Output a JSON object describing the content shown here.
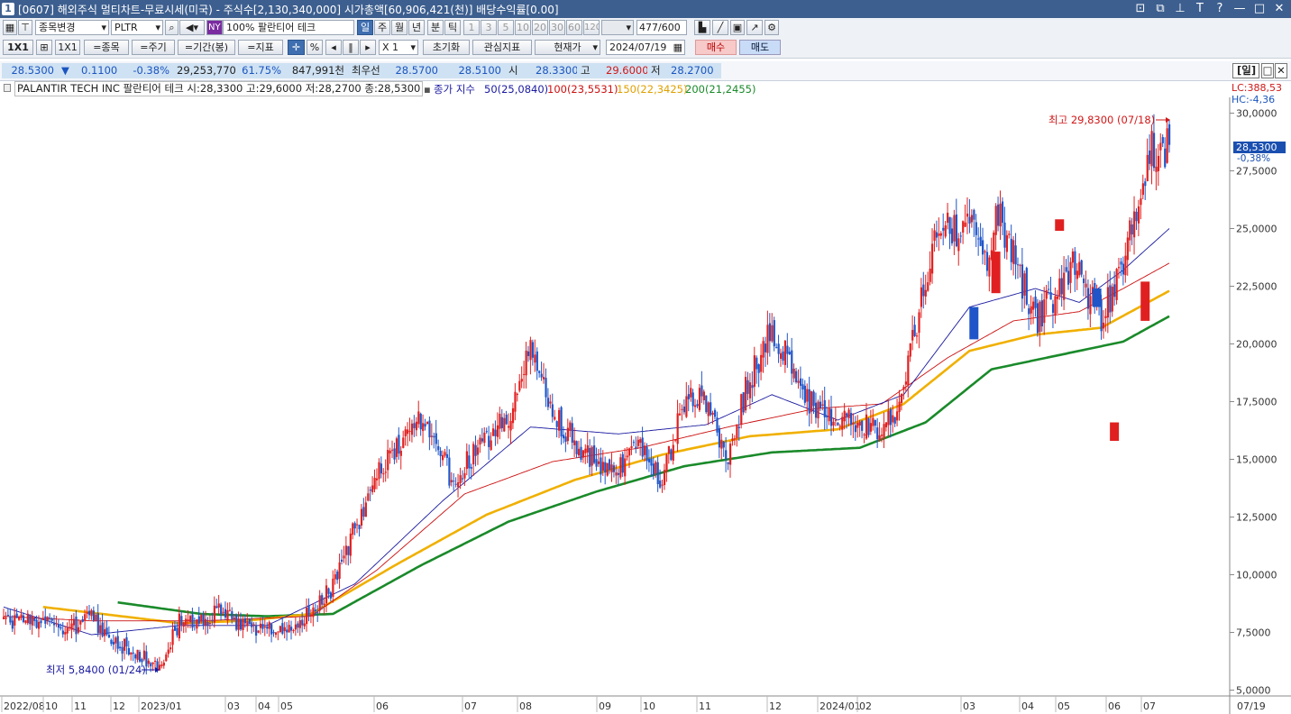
{
  "window": {
    "number": "1",
    "title": "[0607] 해외주식 멀티차트-무료시세(미국) - 주식수[2,130,340,000] 시가총액[60,906,421(천)] 배당수익률[0.00]",
    "controls": [
      "⊡",
      "⧉",
      "⊥",
      "T",
      "?",
      "—",
      "□",
      "✕"
    ]
  },
  "toolbar1": {
    "stock_change_label": "종목변경",
    "ticker": "PLTR",
    "exchange_badge": "NY",
    "stock_name": "100% 팔란티어 테크",
    "periods": [
      "일",
      "주",
      "월",
      "년"
    ],
    "intraday": [
      "분",
      "틱"
    ],
    "intervals": [
      "1",
      "3",
      "5",
      "10",
      "20",
      "30",
      "60",
      "120"
    ],
    "count": "477",
    "count_total": "/600"
  },
  "toolbar2": {
    "ratio_1x1": "1X1",
    "ratio_1x1_b": "1X1",
    "stock_add": "=종목",
    "period_add": "=주기",
    "range_add": "=기간(봉)",
    "indicator_add": "=지표",
    "zoom": "X 1",
    "reset": "초기화",
    "watch_indicator": "관심지표",
    "current_price": "현재가",
    "date": "2024/07/19",
    "buy": "매수",
    "sell": "매도"
  },
  "quote": {
    "price": "28.5300",
    "arrow": "▼",
    "change": "0.1100",
    "change_pct": "-0.38%",
    "volume": "29,253,770",
    "vol_ratio": "61.75%",
    "amount": "847,991천",
    "best_label": "최우선",
    "best_ask": "28.5700",
    "best_bid": "28.5100",
    "open_label": "시",
    "open": "28.3300",
    "high_label": "고",
    "high": "29.6000",
    "low_label": "저",
    "low": "28.2700",
    "day_button": "[일]"
  },
  "legend": {
    "name": "PALANTIR TECH INC  팔란티어 테크 시:28,3300 고:29,6000 저:28,2700 종:28,5300",
    "ma_label": "종가 지수",
    "ma50": "50(25,0840)",
    "ma100": "100(23,5531)",
    "ma150": "150(22,3425)",
    "ma200": "200(21,2455)",
    "lc": "LC:388,53",
    "hc": "HC:-4,36"
  },
  "chart_data": {
    "type": "candlestick",
    "ylim": [
      5,
      30
    ],
    "y_ticks": [
      "30,0000",
      "27,5000",
      "25,0000",
      "22,5000",
      "20,0000",
      "17,5000",
      "15,0000",
      "12,5000",
      "10,0000",
      "7,5000",
      "5,0000"
    ],
    "x_ticks": [
      "2022/08",
      "10",
      "11",
      "12",
      "2023/01",
      "03",
      "04",
      "05",
      "06",
      "07",
      "08",
      "09",
      "10",
      "11",
      "12",
      "2024/01",
      "02",
      "03",
      "04",
      "05",
      "06",
      "07"
    ],
    "x_end_label": "07/19",
    "current_price_tag": "28,5300",
    "current_pct_tag": "-0,38%",
    "high_annotation": "최고 29,8300 (07/18)",
    "low_annotation": "최저 5,8400 (01/24)",
    "colors": {
      "up": "#e02020",
      "down": "#1f55c8",
      "ma50": "#1a1aa0",
      "ma100": "#cc1111",
      "ma150": "#f0b000",
      "ma200": "#1a8a2a"
    },
    "anchors": [
      [
        0,
        8
      ],
      [
        18,
        7.9
      ],
      [
        30,
        7.6
      ],
      [
        40,
        8.1
      ],
      [
        52,
        7
      ],
      [
        62,
        6.5
      ],
      [
        72,
        6
      ],
      [
        80,
        8
      ],
      [
        90,
        8
      ],
      [
        100,
        8.5
      ],
      [
        110,
        7.7
      ],
      [
        128,
        7.6
      ],
      [
        142,
        8.6
      ],
      [
        150,
        9.5
      ],
      [
        160,
        12
      ],
      [
        172,
        14.6
      ],
      [
        184,
        16.4
      ],
      [
        192,
        16.6
      ],
      [
        205,
        14
      ],
      [
        220,
        16
      ],
      [
        232,
        17
      ],
      [
        240,
        19.9
      ],
      [
        250,
        16.9
      ],
      [
        262,
        15.6
      ],
      [
        278,
        14.4
      ],
      [
        288,
        15.6
      ],
      [
        300,
        14
      ],
      [
        310,
        17.6
      ],
      [
        318,
        17.6
      ],
      [
        330,
        15
      ],
      [
        338,
        18
      ],
      [
        350,
        20.6
      ],
      [
        357,
        19.5
      ],
      [
        367,
        17.4
      ],
      [
        378,
        17
      ],
      [
        390,
        16.6
      ],
      [
        398,
        16.3
      ],
      [
        408,
        17
      ],
      [
        416,
        21
      ],
      [
        426,
        25
      ],
      [
        440,
        25
      ],
      [
        448,
        23.6
      ],
      [
        452,
        26
      ],
      [
        462,
        23.2
      ],
      [
        470,
        21
      ],
      [
        478,
        22
      ],
      [
        488,
        23.4
      ],
      [
        500,
        21
      ],
      [
        512,
        24.2
      ],
      [
        522,
        28.4
      ],
      [
        531,
        28.5
      ]
    ],
    "ma50": [
      [
        0,
        8.6
      ],
      [
        40,
        7.4
      ],
      [
        80,
        7.8
      ],
      [
        120,
        7.8
      ],
      [
        160,
        9.6
      ],
      [
        200,
        13.2
      ],
      [
        240,
        16.4
      ],
      [
        280,
        16.1
      ],
      [
        320,
        16.5
      ],
      [
        350,
        17.8
      ],
      [
        380,
        16.7
      ],
      [
        410,
        17.8
      ],
      [
        440,
        21.6
      ],
      [
        470,
        22.4
      ],
      [
        490,
        21.8
      ],
      [
        510,
        23.2
      ],
      [
        531,
        25
      ]
    ],
    "ma100": [
      [
        0,
        8.2
      ],
      [
        40,
        8
      ],
      [
        90,
        8
      ],
      [
        140,
        8.2
      ],
      [
        170,
        10.2
      ],
      [
        210,
        13.5
      ],
      [
        250,
        14.9
      ],
      [
        290,
        15.5
      ],
      [
        330,
        16.4
      ],
      [
        370,
        17.2
      ],
      [
        400,
        17.4
      ],
      [
        430,
        19.4
      ],
      [
        460,
        21
      ],
      [
        490,
        21.4
      ],
      [
        510,
        22.4
      ],
      [
        531,
        23.5
      ]
    ],
    "ma150": [
      [
        18,
        8.6
      ],
      [
        45,
        8.3
      ],
      [
        80,
        7.9
      ],
      [
        110,
        8
      ],
      [
        140,
        8.3
      ],
      [
        180,
        10.5
      ],
      [
        220,
        12.6
      ],
      [
        260,
        14.1
      ],
      [
        300,
        15.2
      ],
      [
        340,
        16
      ],
      [
        380,
        16.3
      ],
      [
        410,
        17.4
      ],
      [
        440,
        19.7
      ],
      [
        470,
        20.4
      ],
      [
        500,
        20.7
      ],
      [
        531,
        22.3
      ]
    ],
    "ma200": [
      [
        52,
        8.8
      ],
      [
        90,
        8.3
      ],
      [
        120,
        8.2
      ],
      [
        150,
        8.3
      ],
      [
        190,
        10.4
      ],
      [
        230,
        12.3
      ],
      [
        270,
        13.6
      ],
      [
        310,
        14.7
      ],
      [
        350,
        15.3
      ],
      [
        390,
        15.5
      ],
      [
        420,
        16.6
      ],
      [
        450,
        18.9
      ],
      [
        480,
        19.5
      ],
      [
        510,
        20.1
      ],
      [
        531,
        21.2
      ]
    ]
  }
}
